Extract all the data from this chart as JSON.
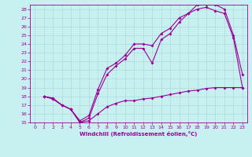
{
  "xlabel": "Windchill (Refroidissement éolien,°C)",
  "bg_color": "#c8f0f0",
  "grid_color": "#b0d8d8",
  "line_color": "#990099",
  "xlim": [
    -0.5,
    23.5
  ],
  "ylim": [
    15,
    28.5
  ],
  "xticks": [
    0,
    1,
    2,
    3,
    4,
    5,
    6,
    7,
    8,
    9,
    10,
    11,
    12,
    13,
    14,
    15,
    16,
    17,
    18,
    19,
    20,
    21,
    22,
    23
  ],
  "yticks": [
    15,
    16,
    17,
    18,
    19,
    20,
    21,
    22,
    23,
    24,
    25,
    26,
    27,
    28
  ],
  "line1_x": [
    1,
    2,
    3,
    4,
    5,
    6,
    7,
    8,
    9,
    10,
    11,
    12,
    13,
    14,
    15,
    16,
    17,
    18,
    19,
    20,
    21,
    22,
    23
  ],
  "line1_y": [
    18.0,
    17.7,
    17.0,
    16.5,
    15.0,
    15.2,
    16.0,
    16.8,
    17.2,
    17.5,
    17.5,
    17.7,
    17.8,
    18.0,
    18.2,
    18.4,
    18.6,
    18.7,
    18.9,
    19.0,
    19.0,
    19.0,
    19.0
  ],
  "line2_x": [
    1,
    2,
    3,
    4,
    5,
    6,
    7,
    8,
    9,
    10,
    11,
    12,
    13,
    14,
    15,
    16,
    17,
    18,
    19,
    20,
    21,
    22,
    23
  ],
  "line2_y": [
    18.0,
    17.8,
    17.0,
    16.5,
    15.0,
    15.5,
    18.3,
    20.5,
    21.5,
    22.3,
    23.5,
    23.5,
    21.8,
    24.5,
    25.2,
    26.5,
    27.5,
    28.0,
    28.2,
    27.8,
    27.5,
    24.7,
    19.0
  ],
  "line3_x": [
    1,
    2,
    3,
    4,
    5,
    6,
    7,
    8,
    9,
    10,
    11,
    12,
    13,
    14,
    15,
    16,
    17,
    18,
    19,
    20,
    21,
    22,
    23
  ],
  "line3_y": [
    18.0,
    17.7,
    17.0,
    16.5,
    15.2,
    15.8,
    18.8,
    21.2,
    21.8,
    22.7,
    24.0,
    24.0,
    23.8,
    25.2,
    25.8,
    27.0,
    27.5,
    28.5,
    28.5,
    28.5,
    28.0,
    25.0,
    20.5
  ]
}
